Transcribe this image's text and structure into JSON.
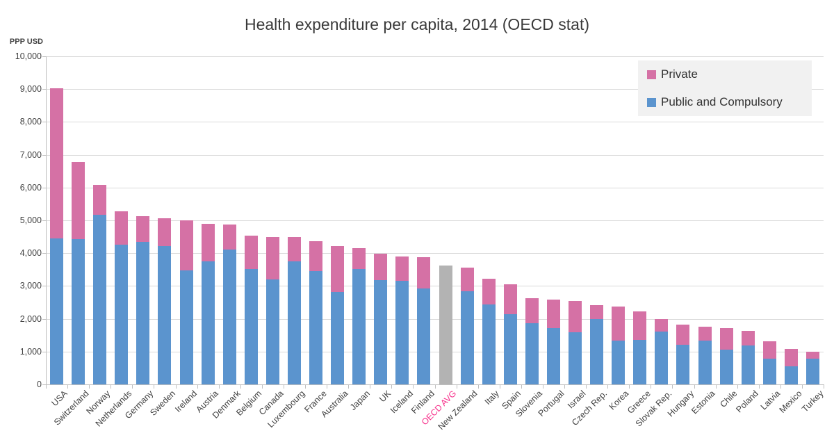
{
  "chart_data": {
    "type": "bar",
    "variant": "stacked",
    "title": "Health expenditure per capita, 2014 (OECD stat)",
    "ylabel": "PPP USD",
    "xlabel": "",
    "ylim": [
      0,
      10000
    ],
    "ytick_step": 1000,
    "yticks": [
      "0",
      "1,000",
      "2,000",
      "3,000",
      "4,000",
      "5,000",
      "6,000",
      "7,000",
      "8,000",
      "9,000",
      "10,000"
    ],
    "grid": "horizontal",
    "legend_position": "top-right",
    "legend": [
      {
        "key": "private",
        "label": "Private",
        "color": "#d571a5"
      },
      {
        "key": "public",
        "label": "Public and Compulsory",
        "color": "#5b94ce"
      }
    ],
    "colors": {
      "public": "#5b94ce",
      "private": "#d571a5",
      "oecd_avg_bar": "#b3b3b3",
      "oecd_avg_label": "#f72e8a",
      "gridline": "#d9d9d9",
      "axis": "#bfbfbf",
      "text": "#404040"
    },
    "bars": [
      {
        "label": "USA",
        "public": 4450,
        "private": 4570
      },
      {
        "label": "Switzerland",
        "public": 4430,
        "private": 2350
      },
      {
        "label": "Norway",
        "public": 5175,
        "private": 905
      },
      {
        "label": "Netherlands",
        "public": 4260,
        "private": 1020
      },
      {
        "label": "Germany",
        "public": 4340,
        "private": 780
      },
      {
        "label": "Sweden",
        "public": 4225,
        "private": 840
      },
      {
        "label": "Ireland",
        "public": 3480,
        "private": 1520
      },
      {
        "label": "Austria",
        "public": 3740,
        "private": 1160
      },
      {
        "label": "Denmark",
        "public": 4100,
        "private": 770
      },
      {
        "label": "Belgium",
        "public": 3510,
        "private": 1020
      },
      {
        "label": "Canada",
        "public": 3190,
        "private": 1310
      },
      {
        "label": "Luxembourg",
        "public": 3740,
        "private": 750
      },
      {
        "label": "France",
        "public": 3450,
        "private": 920
      },
      {
        "label": "Australia",
        "public": 2820,
        "private": 1390
      },
      {
        "label": "Japan",
        "public": 3510,
        "private": 640
      },
      {
        "label": "UK",
        "public": 3180,
        "private": 810
      },
      {
        "label": "Iceland",
        "public": 3160,
        "private": 740
      },
      {
        "label": "Finland",
        "public": 2930,
        "private": 940
      },
      {
        "label": "OECD AVG",
        "total": 3620,
        "color": "#b3b3b3",
        "label_color": "#f72e8a"
      },
      {
        "label": "New Zealand",
        "public": 2830,
        "private": 720
      },
      {
        "label": "Italy",
        "public": 2440,
        "private": 780
      },
      {
        "label": "Spain",
        "public": 2150,
        "private": 910
      },
      {
        "label": "Slovenia",
        "public": 1860,
        "private": 760
      },
      {
        "label": "Portugal",
        "public": 1720,
        "private": 870
      },
      {
        "label": "Israel",
        "public": 1580,
        "private": 960
      },
      {
        "label": "Czech Rep.",
        "public": 1990,
        "private": 420
      },
      {
        "label": "Korea",
        "public": 1340,
        "private": 1040
      },
      {
        "label": "Greece",
        "public": 1350,
        "private": 870
      },
      {
        "label": "Slovak Rep.",
        "public": 1600,
        "private": 390
      },
      {
        "label": "Hungary",
        "public": 1210,
        "private": 610
      },
      {
        "label": "Estonia",
        "public": 1325,
        "private": 425
      },
      {
        "label": "Chile",
        "public": 1060,
        "private": 660
      },
      {
        "label": "Poland",
        "public": 1180,
        "private": 455
      },
      {
        "label": "Latvia",
        "public": 790,
        "private": 520
      },
      {
        "label": "Mexico",
        "public": 560,
        "private": 520
      },
      {
        "label": "Turkey",
        "public": 790,
        "private": 200
      }
    ]
  }
}
